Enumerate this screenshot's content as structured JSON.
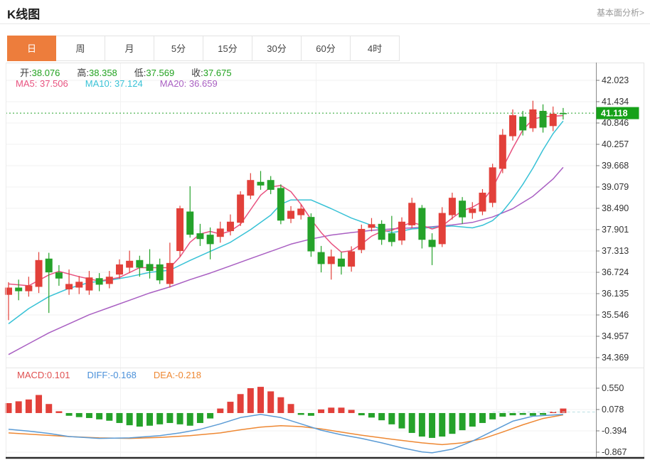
{
  "page": {
    "title": "K线图",
    "link": "基本面分析>"
  },
  "tabs": {
    "items": [
      "日",
      "周",
      "月",
      "5分",
      "15分",
      "30分",
      "60分",
      "4时"
    ],
    "active": "日"
  },
  "legend": {
    "ohlc": [
      {
        "label": "开:",
        "value": "38.076"
      },
      {
        "label": "高:",
        "value": "38.358"
      },
      {
        "label": "低:",
        "value": "37.569"
      },
      {
        "label": "收:",
        "value": "37.675"
      }
    ],
    "ma": [
      {
        "label": "MA5:",
        "value": "37.506",
        "color": "#e8527f"
      },
      {
        "label": "MA10:",
        "value": "37.124",
        "color": "#38c2d6"
      },
      {
        "label": "MA20:",
        "value": "36.659",
        "color": "#a95fc2"
      }
    ],
    "macd": [
      {
        "label": "MACD:",
        "value": "0.101",
        "color": "#e05050"
      },
      {
        "label": "DIFF:",
        "value": "-0.168",
        "color": "#4a90d9"
      },
      {
        "label": "DEA:",
        "value": "-0.218",
        "color": "#ee8833"
      }
    ]
  },
  "colors": {
    "up_candle": "#e2403a",
    "down_candle": "#25a22a",
    "ma5": "#e8527f",
    "ma10": "#38c2d6",
    "ma20": "#a95fc2",
    "diff_line": "#5b9bd5",
    "dea_line": "#ee8833",
    "grid": "#f1f1f1",
    "axis_text": "#333333",
    "price_marker_bg": "#16a119",
    "current_price_line": "#25a22a",
    "tab_active": "#ed7d3c"
  },
  "price_marker": {
    "text": "41.118",
    "price": 41.118
  },
  "chart_data": [
    {
      "type": "candlestick",
      "title": "K线图",
      "period": "日",
      "y_ticks": [
        42.023,
        41.434,
        40.846,
        40.257,
        39.668,
        39.079,
        38.49,
        37.901,
        37.313,
        36.724,
        36.135,
        35.546,
        34.957,
        34.369
      ],
      "ylim": [
        34.2,
        42.3
      ],
      "grid": true,
      "current_price": 41.118,
      "x_gridline_indexes": [
        11.1,
        30.5,
        48.4
      ],
      "candles_ohlc": [
        [
          36.1,
          36.45,
          35.4,
          36.3
        ],
        [
          36.3,
          36.52,
          35.95,
          36.2
        ],
        [
          36.2,
          36.6,
          36.05,
          36.36
        ],
        [
          36.32,
          37.28,
          36.15,
          37.06
        ],
        [
          37.1,
          37.26,
          35.6,
          36.72
        ],
        [
          36.72,
          36.92,
          36.35,
          36.55
        ],
        [
          36.25,
          36.8,
          36.1,
          36.4
        ],
        [
          36.3,
          36.62,
          36.12,
          36.46
        ],
        [
          36.22,
          36.76,
          36.1,
          36.58
        ],
        [
          36.56,
          36.7,
          36.2,
          36.38
        ],
        [
          36.4,
          36.76,
          36.28,
          36.6
        ],
        [
          36.66,
          37.08,
          36.54,
          36.94
        ],
        [
          36.85,
          37.32,
          36.7,
          37.04
        ],
        [
          37.06,
          37.18,
          36.6,
          36.85
        ],
        [
          36.95,
          37.36,
          36.55,
          36.76
        ],
        [
          36.94,
          37.1,
          36.4,
          36.5
        ],
        [
          36.4,
          37.54,
          36.3,
          36.98
        ],
        [
          37.31,
          38.56,
          37.15,
          38.49
        ],
        [
          38.4,
          39.1,
          37.68,
          37.76
        ],
        [
          37.8,
          38.06,
          37.45,
          37.64
        ],
        [
          37.76,
          37.96,
          37.08,
          37.5
        ],
        [
          37.7,
          38.12,
          37.54,
          37.93
        ],
        [
          37.86,
          38.32,
          37.74,
          38.12
        ],
        [
          38.09,
          38.96,
          38.0,
          38.87
        ],
        [
          38.84,
          39.46,
          38.74,
          39.27
        ],
        [
          39.22,
          39.52,
          39.0,
          39.12
        ],
        [
          39.27,
          39.38,
          38.88,
          39.0
        ],
        [
          39.05,
          39.15,
          38.05,
          38.15
        ],
        [
          38.2,
          38.55,
          38.08,
          38.42
        ],
        [
          38.3,
          38.6,
          38.18,
          38.48
        ],
        [
          38.25,
          38.35,
          37.15,
          37.3
        ],
        [
          37.28,
          37.45,
          36.72,
          36.95
        ],
        [
          36.95,
          37.35,
          36.52,
          37.16
        ],
        [
          37.1,
          37.28,
          36.66,
          36.88
        ],
        [
          36.88,
          37.44,
          36.74,
          37.3
        ],
        [
          37.34,
          38.04,
          37.25,
          37.92
        ],
        [
          37.95,
          38.22,
          37.85,
          38.05
        ],
        [
          38.06,
          38.16,
          37.48,
          37.62
        ],
        [
          37.8,
          38.28,
          37.44,
          37.56
        ],
        [
          37.6,
          38.24,
          37.48,
          38.12
        ],
        [
          38.02,
          38.78,
          37.94,
          38.64
        ],
        [
          38.5,
          38.58,
          37.38,
          37.62
        ],
        [
          37.62,
          37.8,
          36.92,
          37.42
        ],
        [
          37.5,
          38.52,
          37.42,
          38.36
        ],
        [
          38.3,
          38.92,
          38.18,
          38.78
        ],
        [
          38.7,
          38.8,
          38.06,
          38.24
        ],
        [
          38.36,
          38.66,
          38.2,
          38.48
        ],
        [
          38.4,
          39.02,
          38.3,
          38.92
        ],
        [
          38.64,
          39.72,
          38.52,
          39.62
        ],
        [
          39.58,
          40.68,
          39.46,
          40.52
        ],
        [
          40.48,
          41.22,
          40.36,
          41.06
        ],
        [
          41.02,
          41.18,
          40.5,
          40.64
        ],
        [
          40.7,
          41.46,
          40.6,
          41.22
        ],
        [
          41.18,
          41.36,
          40.58,
          40.72
        ],
        [
          40.76,
          41.3,
          40.62,
          41.1
        ],
        [
          41.12,
          41.26,
          40.94,
          41.118
        ]
      ],
      "ma5_points": [
        [
          0,
          36.4
        ],
        [
          2,
          36.35
        ],
        [
          4,
          36.65
        ],
        [
          5,
          36.75
        ],
        [
          7,
          36.6
        ],
        [
          9,
          36.48
        ],
        [
          11,
          36.58
        ],
        [
          13,
          36.85
        ],
        [
          16,
          36.85
        ],
        [
          17,
          37.15
        ],
        [
          18,
          37.55
        ],
        [
          19,
          37.78
        ],
        [
          20,
          37.85
        ],
        [
          21,
          37.78
        ],
        [
          22,
          37.86
        ],
        [
          23,
          38.05
        ],
        [
          24,
          38.45
        ],
        [
          25,
          38.85
        ],
        [
          26,
          39.08
        ],
        [
          27,
          39.12
        ],
        [
          28,
          38.95
        ],
        [
          29,
          38.6
        ],
        [
          30,
          38.18
        ],
        [
          31,
          37.82
        ],
        [
          32,
          37.52
        ],
        [
          33,
          37.28
        ],
        [
          34,
          37.32
        ],
        [
          35,
          37.5
        ],
        [
          36,
          37.72
        ],
        [
          37,
          37.85
        ],
        [
          38,
          37.88
        ],
        [
          39,
          38.0
        ],
        [
          40,
          38.1
        ],
        [
          41,
          38.02
        ],
        [
          42,
          37.92
        ],
        [
          43,
          38.0
        ],
        [
          44,
          38.22
        ],
        [
          45,
          38.42
        ],
        [
          46,
          38.52
        ],
        [
          47,
          38.68
        ],
        [
          48,
          39.05
        ],
        [
          49,
          39.6
        ],
        [
          50,
          40.15
        ],
        [
          51,
          40.65
        ],
        [
          52,
          40.95
        ],
        [
          53,
          41.02
        ],
        [
          55,
          41.05
        ]
      ],
      "ma10_points": [
        [
          0,
          35.3
        ],
        [
          2,
          35.72
        ],
        [
          4,
          36.05
        ],
        [
          6,
          36.28
        ],
        [
          8,
          36.44
        ],
        [
          10,
          36.5
        ],
        [
          12,
          36.6
        ],
        [
          14,
          36.72
        ],
        [
          16,
          36.78
        ],
        [
          18,
          37.05
        ],
        [
          20,
          37.3
        ],
        [
          22,
          37.55
        ],
        [
          24,
          37.9
        ],
        [
          26,
          38.3
        ],
        [
          27,
          38.6
        ],
        [
          28,
          38.72
        ],
        [
          30,
          38.72
        ],
        [
          32,
          38.48
        ],
        [
          34,
          38.22
        ],
        [
          36,
          38.02
        ],
        [
          37,
          37.9
        ],
        [
          38,
          37.82
        ],
        [
          39,
          37.86
        ],
        [
          40,
          37.92
        ],
        [
          42,
          37.96
        ],
        [
          44,
          38.0
        ],
        [
          46,
          37.95
        ],
        [
          47,
          38.02
        ],
        [
          48,
          38.15
        ],
        [
          49,
          38.4
        ],
        [
          50,
          38.75
        ],
        [
          51,
          39.15
        ],
        [
          52,
          39.6
        ],
        [
          53,
          40.1
        ],
        [
          54,
          40.55
        ],
        [
          55,
          40.9
        ]
      ],
      "ma20_points": [
        [
          0,
          34.45
        ],
        [
          2,
          34.75
        ],
        [
          4,
          35.05
        ],
        [
          6,
          35.3
        ],
        [
          8,
          35.55
        ],
        [
          10,
          35.75
        ],
        [
          12,
          35.95
        ],
        [
          14,
          36.15
        ],
        [
          16,
          36.32
        ],
        [
          18,
          36.52
        ],
        [
          20,
          36.7
        ],
        [
          22,
          36.9
        ],
        [
          24,
          37.1
        ],
        [
          26,
          37.3
        ],
        [
          28,
          37.5
        ],
        [
          30,
          37.64
        ],
        [
          32,
          37.75
        ],
        [
          34,
          37.82
        ],
        [
          36,
          37.88
        ],
        [
          38,
          37.92
        ],
        [
          40,
          37.95
        ],
        [
          42,
          37.98
        ],
        [
          44,
          38.03
        ],
        [
          46,
          38.1
        ],
        [
          48,
          38.25
        ],
        [
          50,
          38.48
        ],
        [
          52,
          38.82
        ],
        [
          54,
          39.3
        ],
        [
          55,
          39.62
        ]
      ]
    },
    {
      "type": "bar",
      "title": "MACD",
      "y_ticks": [
        0.55,
        0.078,
        -0.394,
        -0.867
      ],
      "grid": true,
      "bars": [
        0.22,
        0.26,
        0.3,
        0.4,
        0.2,
        0.04,
        -0.06,
        -0.09,
        -0.11,
        -0.14,
        -0.17,
        -0.22,
        -0.27,
        -0.3,
        -0.28,
        -0.25,
        -0.22,
        -0.25,
        -0.28,
        -0.22,
        -0.12,
        0.1,
        0.25,
        0.42,
        0.55,
        0.58,
        0.48,
        0.35,
        0.2,
        -0.04,
        -0.06,
        0.08,
        0.12,
        0.12,
        0.07,
        -0.05,
        -0.1,
        -0.16,
        -0.25,
        -0.34,
        -0.44,
        -0.52,
        -0.55,
        -0.52,
        -0.46,
        -0.38,
        -0.3,
        -0.22,
        -0.14,
        -0.08,
        -0.05,
        -0.04,
        -0.06,
        -0.04,
        0.03,
        0.1
      ],
      "diff_points": [
        [
          0,
          -0.36
        ],
        [
          2,
          -0.4
        ],
        [
          4,
          -0.45
        ],
        [
          6,
          -0.52
        ],
        [
          9,
          -0.56
        ],
        [
          12,
          -0.55
        ],
        [
          15,
          -0.5
        ],
        [
          17,
          -0.44
        ],
        [
          19,
          -0.36
        ],
        [
          21,
          -0.24
        ],
        [
          23,
          -0.1
        ],
        [
          25,
          -0.03
        ],
        [
          27,
          -0.1
        ],
        [
          29,
          -0.24
        ],
        [
          31,
          -0.38
        ],
        [
          33,
          -0.48
        ],
        [
          35,
          -0.56
        ],
        [
          37,
          -0.66
        ],
        [
          39,
          -0.77
        ],
        [
          41,
          -0.86
        ],
        [
          42,
          -0.88
        ],
        [
          44,
          -0.8
        ],
        [
          46,
          -0.62
        ],
        [
          48,
          -0.4
        ],
        [
          50,
          -0.18
        ],
        [
          52,
          -0.07
        ],
        [
          55,
          -0.03
        ]
      ],
      "dea_points": [
        [
          0,
          -0.44
        ],
        [
          3,
          -0.48
        ],
        [
          6,
          -0.52
        ],
        [
          9,
          -0.55
        ],
        [
          12,
          -0.56
        ],
        [
          15,
          -0.54
        ],
        [
          18,
          -0.5
        ],
        [
          21,
          -0.44
        ],
        [
          23,
          -0.37
        ],
        [
          25,
          -0.31
        ],
        [
          27,
          -0.28
        ],
        [
          29,
          -0.3
        ],
        [
          31,
          -0.35
        ],
        [
          33,
          -0.42
        ],
        [
          35,
          -0.49
        ],
        [
          38,
          -0.58
        ],
        [
          41,
          -0.66
        ],
        [
          43,
          -0.7
        ],
        [
          45,
          -0.66
        ],
        [
          47,
          -0.57
        ],
        [
          49,
          -0.42
        ],
        [
          51,
          -0.26
        ],
        [
          53,
          -0.12
        ],
        [
          55,
          -0.04
        ]
      ]
    }
  ]
}
